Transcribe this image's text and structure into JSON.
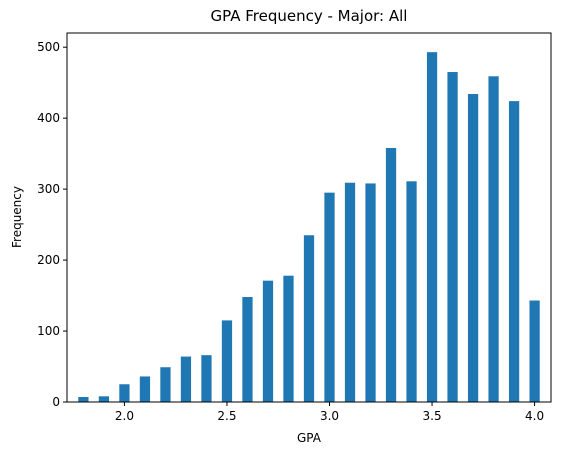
{
  "chart_data": {
    "type": "bar",
    "title": "GPA Frequency - Major: All",
    "xlabel": "GPA",
    "ylabel": "Frequency",
    "xlim": [
      1.72,
      4.08
    ],
    "ylim": [
      0,
      520
    ],
    "x_ticks": [
      {
        "value": 2.0,
        "label": "2.0"
      },
      {
        "value": 2.5,
        "label": "2.5"
      },
      {
        "value": 3.0,
        "label": "3.0"
      },
      {
        "value": 3.5,
        "label": "3.5"
      },
      {
        "value": 4.0,
        "label": "4.0"
      }
    ],
    "y_ticks": [
      {
        "value": 0,
        "label": "0"
      },
      {
        "value": 100,
        "label": "100"
      },
      {
        "value": 200,
        "label": "200"
      },
      {
        "value": 300,
        "label": "300"
      },
      {
        "value": 400,
        "label": "400"
      },
      {
        "value": 500,
        "label": "500"
      }
    ],
    "bar_width": 0.05,
    "x": [
      1.8,
      1.9,
      2.0,
      2.1,
      2.2,
      2.3,
      2.4,
      2.5,
      2.6,
      2.7,
      2.8,
      2.9,
      3.0,
      3.1,
      3.2,
      3.3,
      3.4,
      3.5,
      3.6,
      3.7,
      3.8,
      3.9,
      4.0
    ],
    "values": [
      7,
      8,
      25,
      36,
      49,
      64,
      66,
      115,
      148,
      171,
      178,
      235,
      295,
      309,
      308,
      358,
      311,
      493,
      465,
      434,
      459,
      424,
      143
    ],
    "bar_color": "#1f77b4",
    "grid": false,
    "legend": false
  }
}
